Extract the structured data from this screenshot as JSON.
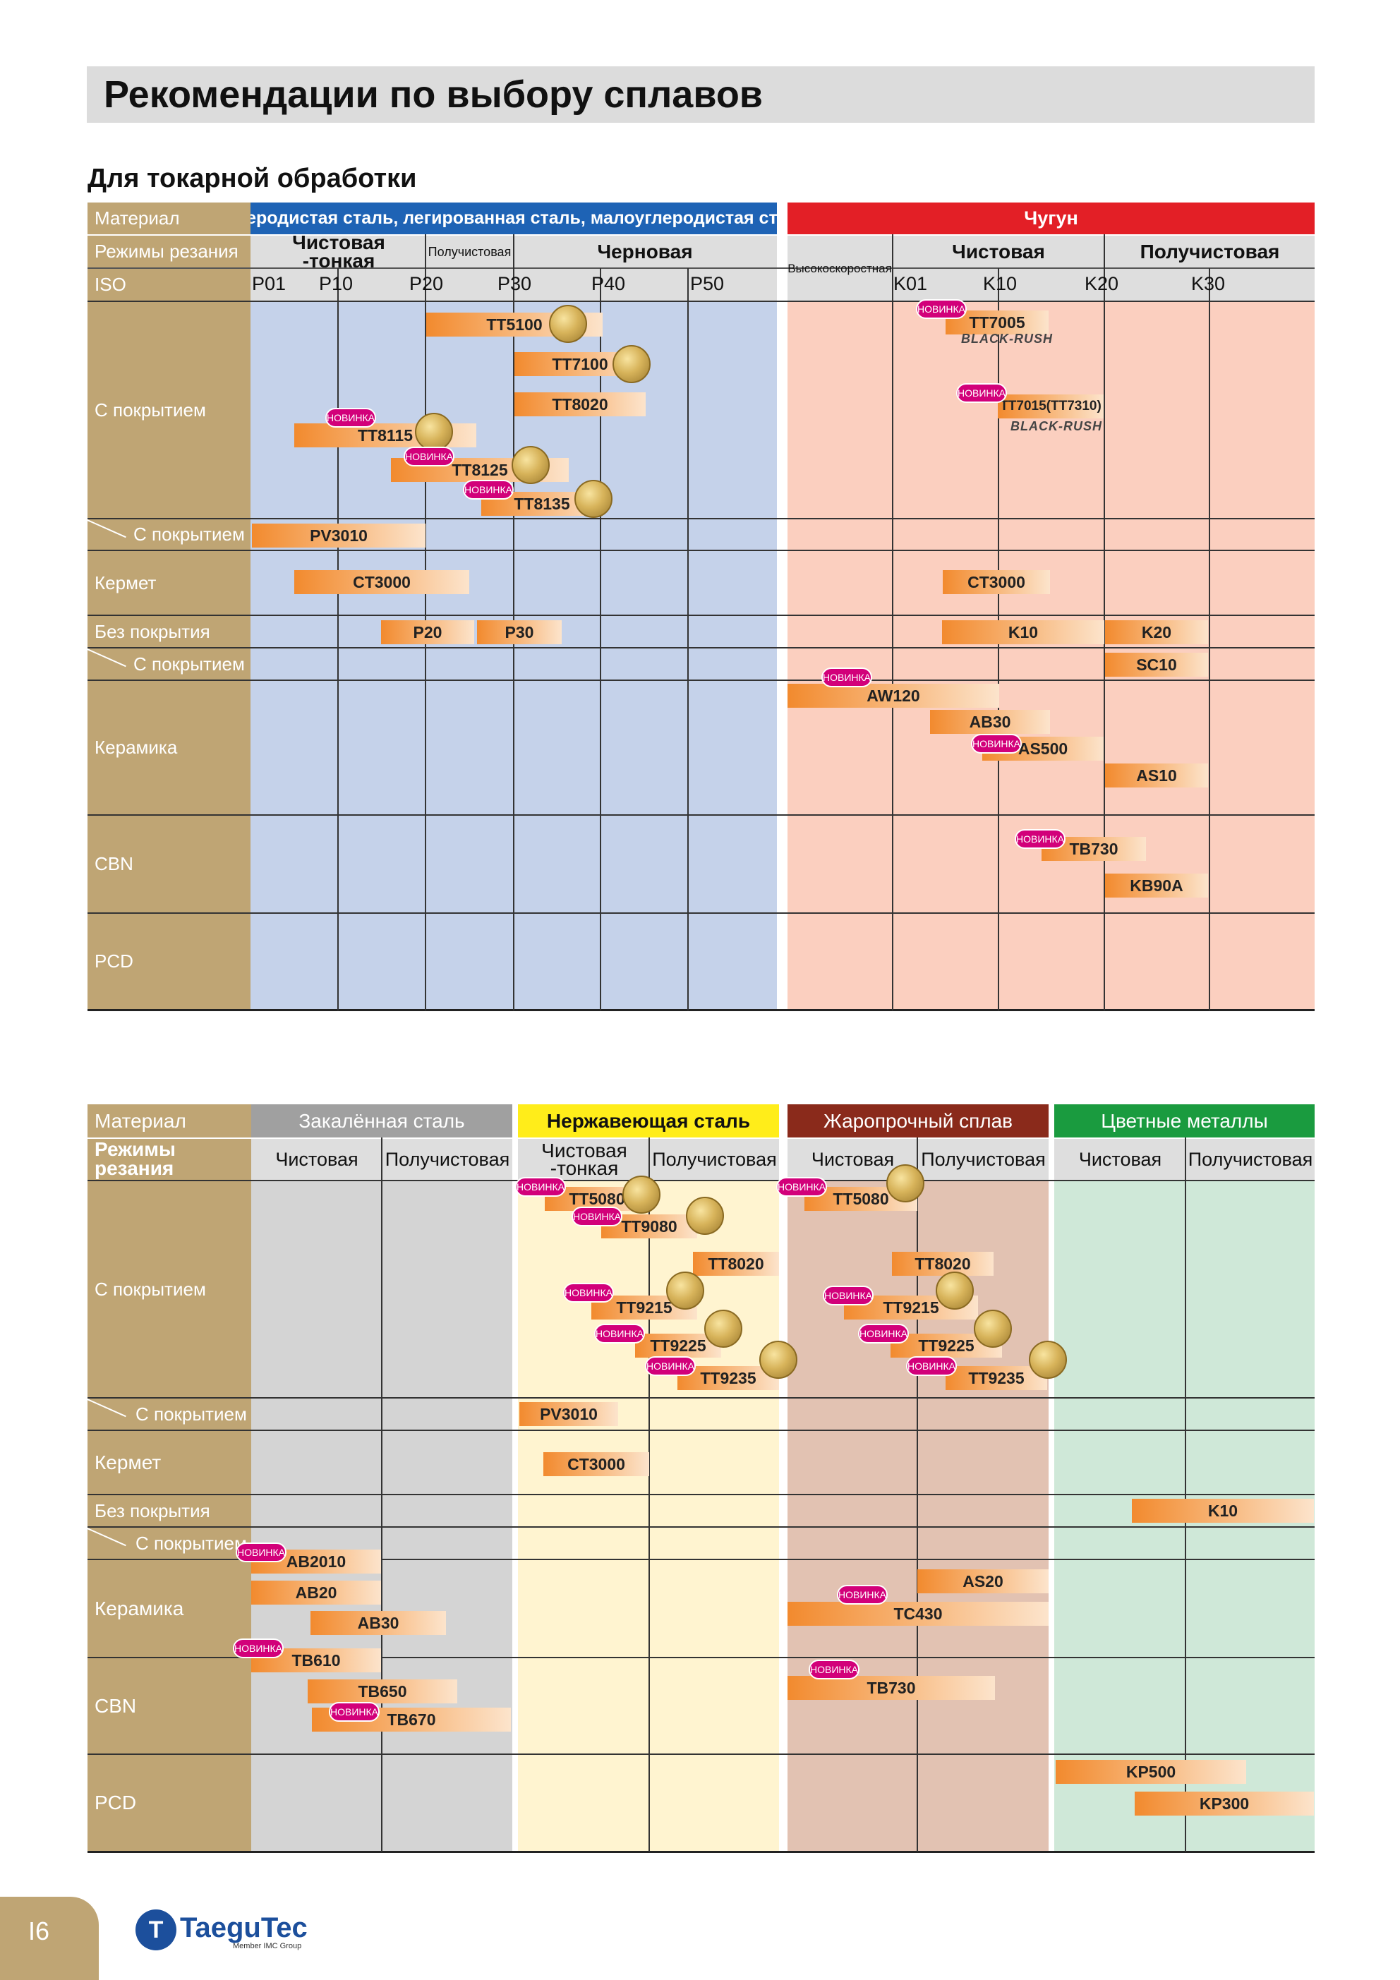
{
  "page": {
    "title": "Рекомендации по выбору сплавов",
    "section_title": "Для токарной обработки",
    "page_number": "I6",
    "logo_text": "TaeguTec",
    "logo_sub": "Member IMC Group",
    "new_badge": "НОВИНКА",
    "black_rush": "BLACK-RUSH"
  },
  "colors": {
    "label_column": "#bfa574",
    "steel_bg": "#c5d2ea",
    "cast_iron_bg": "#fbcfbf",
    "cast_iron_header": "#e31f26",
    "hardened_header": "#a0a0a0",
    "hardened_bg": "#d4d4d4",
    "stainless_header": "#ffed1a",
    "stainless_bg": "#fff4d0",
    "heat_header": "#8a2a1b",
    "heat_bg": "#e2c2b2",
    "nonferrous_header": "#1a9b3f",
    "nonferrous_bg": "#cfe8d8",
    "badge": "#d2007a",
    "bar_start": "#f28a2e"
  },
  "table1": {
    "row_labels": {
      "material": "Материал",
      "cutting": "Режимы резания",
      "iso": "ISO",
      "coated": "С покрытием",
      "cermet_coated": "С покрытием",
      "cermet": "Кермет",
      "uncoated": "Без покрытия",
      "ceramic_coated": "С покрытием",
      "ceramic": "Керамика",
      "cbn": "CBN",
      "pcd": "PCD"
    },
    "steel": {
      "header": "Углеродистая сталь, легированная сталь, малоуглеродистая сталь",
      "finishing": "Чистовая -тонкая",
      "semi": "Получистовая",
      "rough": "Черновая",
      "iso": [
        "P01",
        "P10",
        "P20",
        "P30",
        "P40",
        "P50"
      ]
    },
    "iron": {
      "header": "Чугун",
      "high_speed": "Высокоскоростная",
      "finishing": "Чистовая",
      "semi": "Получистовая",
      "iso": [
        "K01",
        "K10",
        "K20",
        "K30"
      ]
    },
    "grades": {
      "tt5100": "TT5100",
      "tt7100": "TT7100",
      "tt8020": "TT8020",
      "tt8115": "TT8115",
      "tt8125": "TT8125",
      "tt8135": "TT8135",
      "pv3010": "PV3010",
      "ct3000_steel": "CT3000",
      "p20": "P20",
      "p30": "P30",
      "tt7005": "TT7005",
      "tt7015": "TT7015(TT7310)",
      "ct3000_iron": "CT3000",
      "k10": "K10",
      "k20": "K20",
      "sc10": "SC10",
      "aw120": "AW120",
      "ab30": "AB30",
      "as500": "AS500",
      "as10": "AS10",
      "tb730": "TB730",
      "kb90a": "KB90A"
    }
  },
  "table2": {
    "row_labels": {
      "material": "Материал",
      "cutting": "Режимы резания",
      "coated": "С покрытием",
      "cermet_coated": "С покрытием",
      "cermet": "Кермет",
      "uncoated": "Без покрытия",
      "ceramic_coated": "С покрытием",
      "ceramic": "Керамика",
      "cbn": "CBN",
      "pcd": "PCD"
    },
    "hardened": {
      "header": "Закалённая сталь",
      "finishing": "Чистовая",
      "semi": "Получистовая"
    },
    "stainless": {
      "header": "Нержавеющая сталь",
      "finishing": "Чистовая -тонкая",
      "semi": "Получистовая"
    },
    "heat": {
      "header": "Жаропрочный сплав",
      "finishing": "Чистовая",
      "semi": "Получистовая"
    },
    "nonferrous": {
      "header": "Цветные металлы",
      "finishing": "Чистовая",
      "semi": "Получистовая"
    },
    "grades": {
      "tt5080_s": "TT5080",
      "tt9080": "TT9080",
      "tt8020_s": "TT8020",
      "tt9215_s": "TT9215",
      "tt9225_s": "TT9225",
      "tt9235_s": "TT9235",
      "tt5080_h": "TT5080",
      "tt8020_h": "TT8020",
      "tt9215_h": "TT9215",
      "tt9225_h": "TT9225",
      "tt9235_h": "TT9235",
      "pv3010": "PV3010",
      "ct3000": "CT3000",
      "k10": "K10",
      "ab2010": "AB2010",
      "ab20": "AB20",
      "ab30": "AB30",
      "as20": "AS20",
      "tc430": "TC430",
      "tb610": "TB610",
      "tb650": "TB650",
      "tb670": "TB670",
      "tb730": "TB730",
      "kp500": "KP500",
      "kp300": "KP300"
    }
  }
}
